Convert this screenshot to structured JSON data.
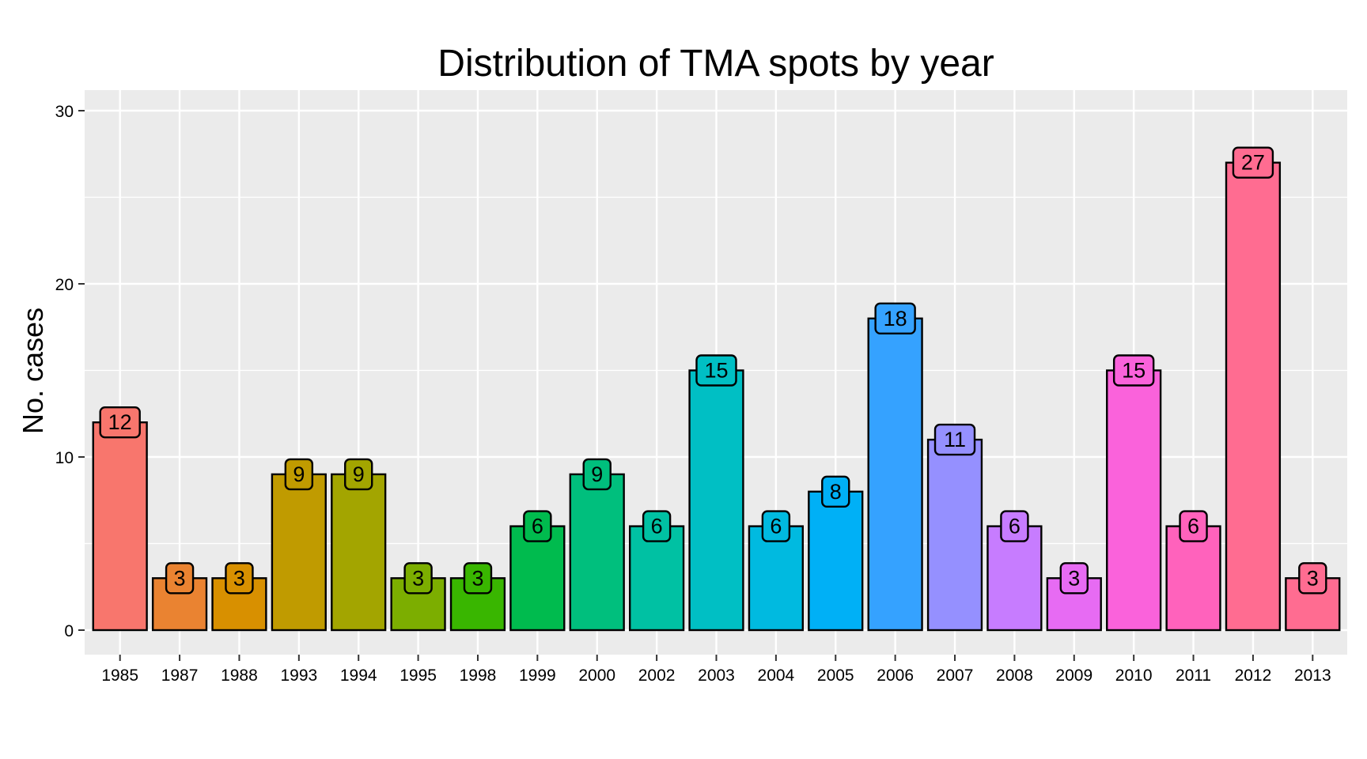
{
  "chart_data": {
    "type": "bar",
    "title": "Distribution of TMA spots by year",
    "xlabel": "",
    "ylabel": "No. cases",
    "ylim": [
      0,
      30
    ],
    "yticks": [
      0,
      10,
      20,
      30
    ],
    "grid": true,
    "categories": [
      "1985",
      "1987",
      "1988",
      "1993",
      "1994",
      "1995",
      "1998",
      "1999",
      "2000",
      "2002",
      "2003",
      "2004",
      "2005",
      "2006",
      "2007",
      "2008",
      "2009",
      "2010",
      "2011",
      "2012",
      "2013"
    ],
    "values": [
      12,
      3,
      3,
      9,
      9,
      3,
      3,
      6,
      9,
      6,
      15,
      6,
      8,
      18,
      11,
      6,
      3,
      15,
      6,
      27,
      3
    ],
    "colors": [
      "#F8766D",
      "#EA8331",
      "#D89000",
      "#C09B00",
      "#A3A500",
      "#7CAE00",
      "#39B600",
      "#00BB4E",
      "#00BF7D",
      "#00C1A3",
      "#00BFC4",
      "#00BAE0",
      "#00B0F6",
      "#35A2FF",
      "#9590FF",
      "#C77CFF",
      "#E76BF3",
      "#FA62DB",
      "#FF62BC",
      "#FF6C91",
      "#FF6C91"
    ],
    "legend": "none"
  }
}
